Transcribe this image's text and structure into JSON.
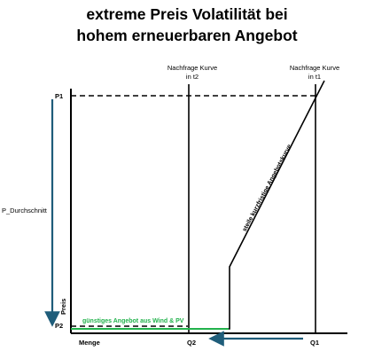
{
  "title": {
    "line1": "extreme Preis Volatilität bei",
    "line2": "hohem erneuerbaren Angebot"
  },
  "labels": {
    "demand_t2": [
      "Nachfrage Kurve",
      "in t2"
    ],
    "demand_t1": [
      "Nachfrage Kurve",
      "in t1"
    ],
    "supply_curve": "steile kurzfristige Angebotskurve",
    "cheap_supply": "günstiges Angebot aus Wind & PV",
    "p1": "P1",
    "p2": "P2",
    "p_avg": "P_Durchschnitt",
    "price_axis": "Preis",
    "quantity_axis": "Menge",
    "q1": "Q1",
    "q2": "Q2"
  },
  "colors": {
    "axis": "#000000",
    "green": "#22b24c",
    "arrow": "#1f5d7a"
  }
}
